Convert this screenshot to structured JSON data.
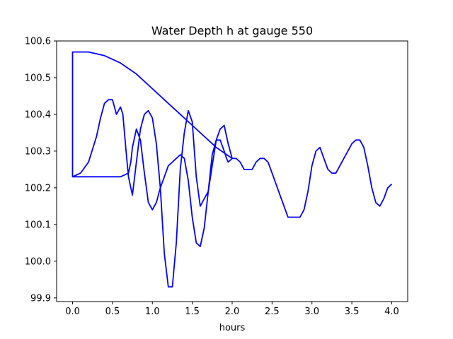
{
  "chart_data": {
    "type": "line",
    "title": "Water Depth h at gauge 550",
    "xlabel": "hours",
    "ylabel": "",
    "xlim": [
      -0.2,
      4.2
    ],
    "ylim": [
      99.89,
      100.6
    ],
    "x_ticks": [
      0.0,
      0.5,
      1.0,
      1.5,
      2.0,
      2.5,
      3.0,
      3.5,
      4.0
    ],
    "x_tick_labels": [
      "0.0",
      "0.5",
      "1.0",
      "1.5",
      "2.0",
      "2.5",
      "3.0",
      "3.5",
      "4.0"
    ],
    "y_ticks": [
      99.9,
      100.0,
      100.1,
      100.2,
      100.3,
      100.4,
      100.5,
      100.6
    ],
    "y_tick_labels": [
      "99.9",
      "100.0",
      "100.1",
      "100.2",
      "100.3",
      "100.4",
      "100.5",
      "100.6"
    ],
    "grid": false,
    "series": [
      {
        "color": "#0000ff",
        "x": [
          0.0,
          0.0,
          0.0,
          0.1,
          0.2,
          0.3,
          0.35,
          0.4,
          0.45,
          0.5,
          0.55,
          0.6,
          0.63,
          0.67,
          0.7,
          0.75,
          0.8,
          0.85,
          0.9,
          0.95,
          1.0,
          1.05,
          1.1,
          1.15,
          1.2,
          1.25,
          1.3,
          1.35,
          1.4,
          1.45,
          1.5,
          1.55,
          1.6,
          1.65,
          1.7,
          1.75,
          1.8,
          1.85,
          1.9,
          1.95,
          2.0,
          1.8,
          1.6,
          1.4,
          1.2,
          1.0,
          0.8,
          0.6,
          0.4,
          0.2,
          0.0,
          0.0,
          0.0,
          0.2,
          0.4,
          0.6,
          0.7,
          0.73,
          0.75,
          0.8,
          0.85,
          0.9,
          0.95,
          1.0,
          1.05,
          1.1,
          1.15,
          1.2,
          1.25,
          1.3,
          1.35,
          1.4,
          1.45,
          1.5,
          1.55,
          1.6,
          1.65,
          1.7,
          1.75,
          1.8,
          1.85,
          1.9,
          1.93,
          1.95,
          2.0,
          2.05,
          2.1,
          2.15,
          2.2,
          2.25,
          2.3,
          2.35,
          2.4,
          2.45,
          2.5,
          2.6,
          2.7,
          2.8,
          2.85,
          2.9,
          2.95,
          3.0,
          3.05,
          3.1,
          3.15,
          3.2,
          3.25,
          3.3,
          3.35,
          3.4,
          3.45,
          3.5,
          3.55,
          3.6,
          3.65,
          3.7,
          3.75,
          3.8,
          3.85,
          3.9,
          3.95,
          4.0
        ],
        "y": [
          100.23,
          100.23,
          100.23,
          100.24,
          100.27,
          100.34,
          100.39,
          100.43,
          100.44,
          100.44,
          100.4,
          100.42,
          100.4,
          100.3,
          100.23,
          100.18,
          100.27,
          100.36,
          100.4,
          100.41,
          100.39,
          100.32,
          100.2,
          100.02,
          99.93,
          99.93,
          100.05,
          100.25,
          100.35,
          100.41,
          100.38,
          100.23,
          100.15,
          100.17,
          100.19,
          100.26,
          100.33,
          100.36,
          100.37,
          100.32,
          100.28,
          100.31,
          100.35,
          100.39,
          100.43,
          100.47,
          100.51,
          100.54,
          100.56,
          100.57,
          100.57,
          100.23,
          100.23,
          100.23,
          100.23,
          100.23,
          100.24,
          100.27,
          100.31,
          100.36,
          100.33,
          100.24,
          100.16,
          100.14,
          100.16,
          100.2,
          100.23,
          100.26,
          100.27,
          100.28,
          100.29,
          100.28,
          100.22,
          100.12,
          100.05,
          100.04,
          100.09,
          100.19,
          100.29,
          100.33,
          100.33,
          100.3,
          100.28,
          100.27,
          100.28,
          100.28,
          100.27,
          100.25,
          100.25,
          100.25,
          100.27,
          100.28,
          100.28,
          100.27,
          100.24,
          100.18,
          100.12,
          100.12,
          100.12,
          100.14,
          100.19,
          100.26,
          100.3,
          100.31,
          100.28,
          100.25,
          100.24,
          100.24,
          100.26,
          100.28,
          100.3,
          100.32,
          100.33,
          100.33,
          100.31,
          100.26,
          100.2,
          100.16,
          100.15,
          100.17,
          100.2,
          100.21
        ]
      }
    ]
  }
}
